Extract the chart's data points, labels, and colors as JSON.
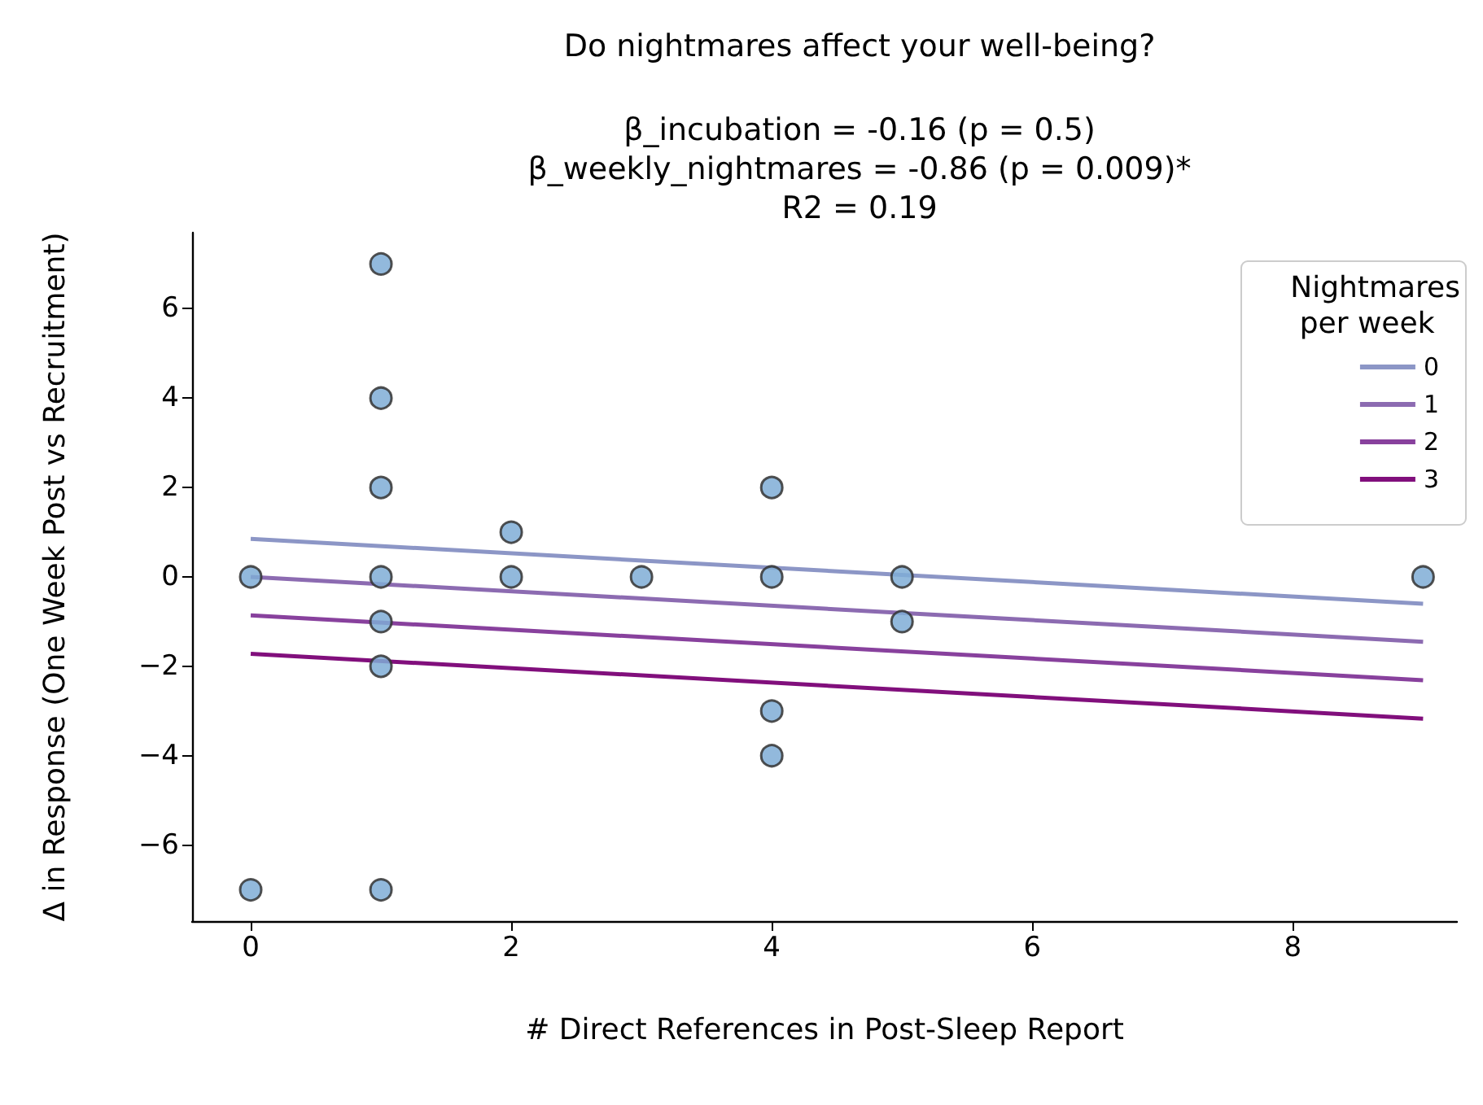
{
  "chart_data": {
    "type": "scatter",
    "title": "Do nightmares affect your well-being?",
    "subtitle": "β_incubation = -0.16 (p = 0.5)\nβ_weekly_nightmares = -0.86 (p = 0.009)*\nR2 = 0.19",
    "xlabel": "# Direct References in Post-Sleep Report",
    "ylabel": "Δ in Response (One Week Post vs Recruitment)",
    "legend_title": "Nightmares\n per week",
    "legend": "top right",
    "grid": false,
    "xlim": [
      -0.45,
      9.26
    ],
    "ylim": [
      -7.7,
      7.7
    ],
    "xticks": [
      0,
      2,
      4,
      6,
      8
    ],
    "yticks": [
      -6,
      -4,
      -2,
      0,
      2,
      4,
      6
    ],
    "series": [
      {
        "marker": "circle",
        "color": "#7fadd6",
        "x": [
          0,
          0,
          1,
          1,
          1,
          1,
          1,
          1,
          1,
          2,
          2,
          3,
          4,
          4,
          4,
          4,
          5,
          5,
          9
        ],
        "values": [
          0,
          -7,
          7,
          4,
          2,
          0,
          -1,
          -2,
          -7,
          1,
          0,
          0,
          2,
          0,
          -3,
          -4,
          0,
          -1,
          0
        ]
      },
      {
        "type": "line",
        "name": "0",
        "color": "#8c96c6",
        "x": [
          0,
          9
        ],
        "values": [
          0.85,
          -0.6
        ]
      },
      {
        "type": "line",
        "name": "1",
        "color": "#8c6bb1",
        "x": [
          0,
          9
        ],
        "values": [
          0,
          -1.45
        ]
      },
      {
        "type": "line",
        "name": "2",
        "color": "#88419d",
        "x": [
          0,
          9
        ],
        "values": [
          -0.86,
          -2.31
        ]
      },
      {
        "type": "line",
        "name": "3",
        "color": "#810f7c",
        "x": [
          0,
          9
        ],
        "values": [
          -1.72,
          -3.17
        ]
      }
    ]
  }
}
